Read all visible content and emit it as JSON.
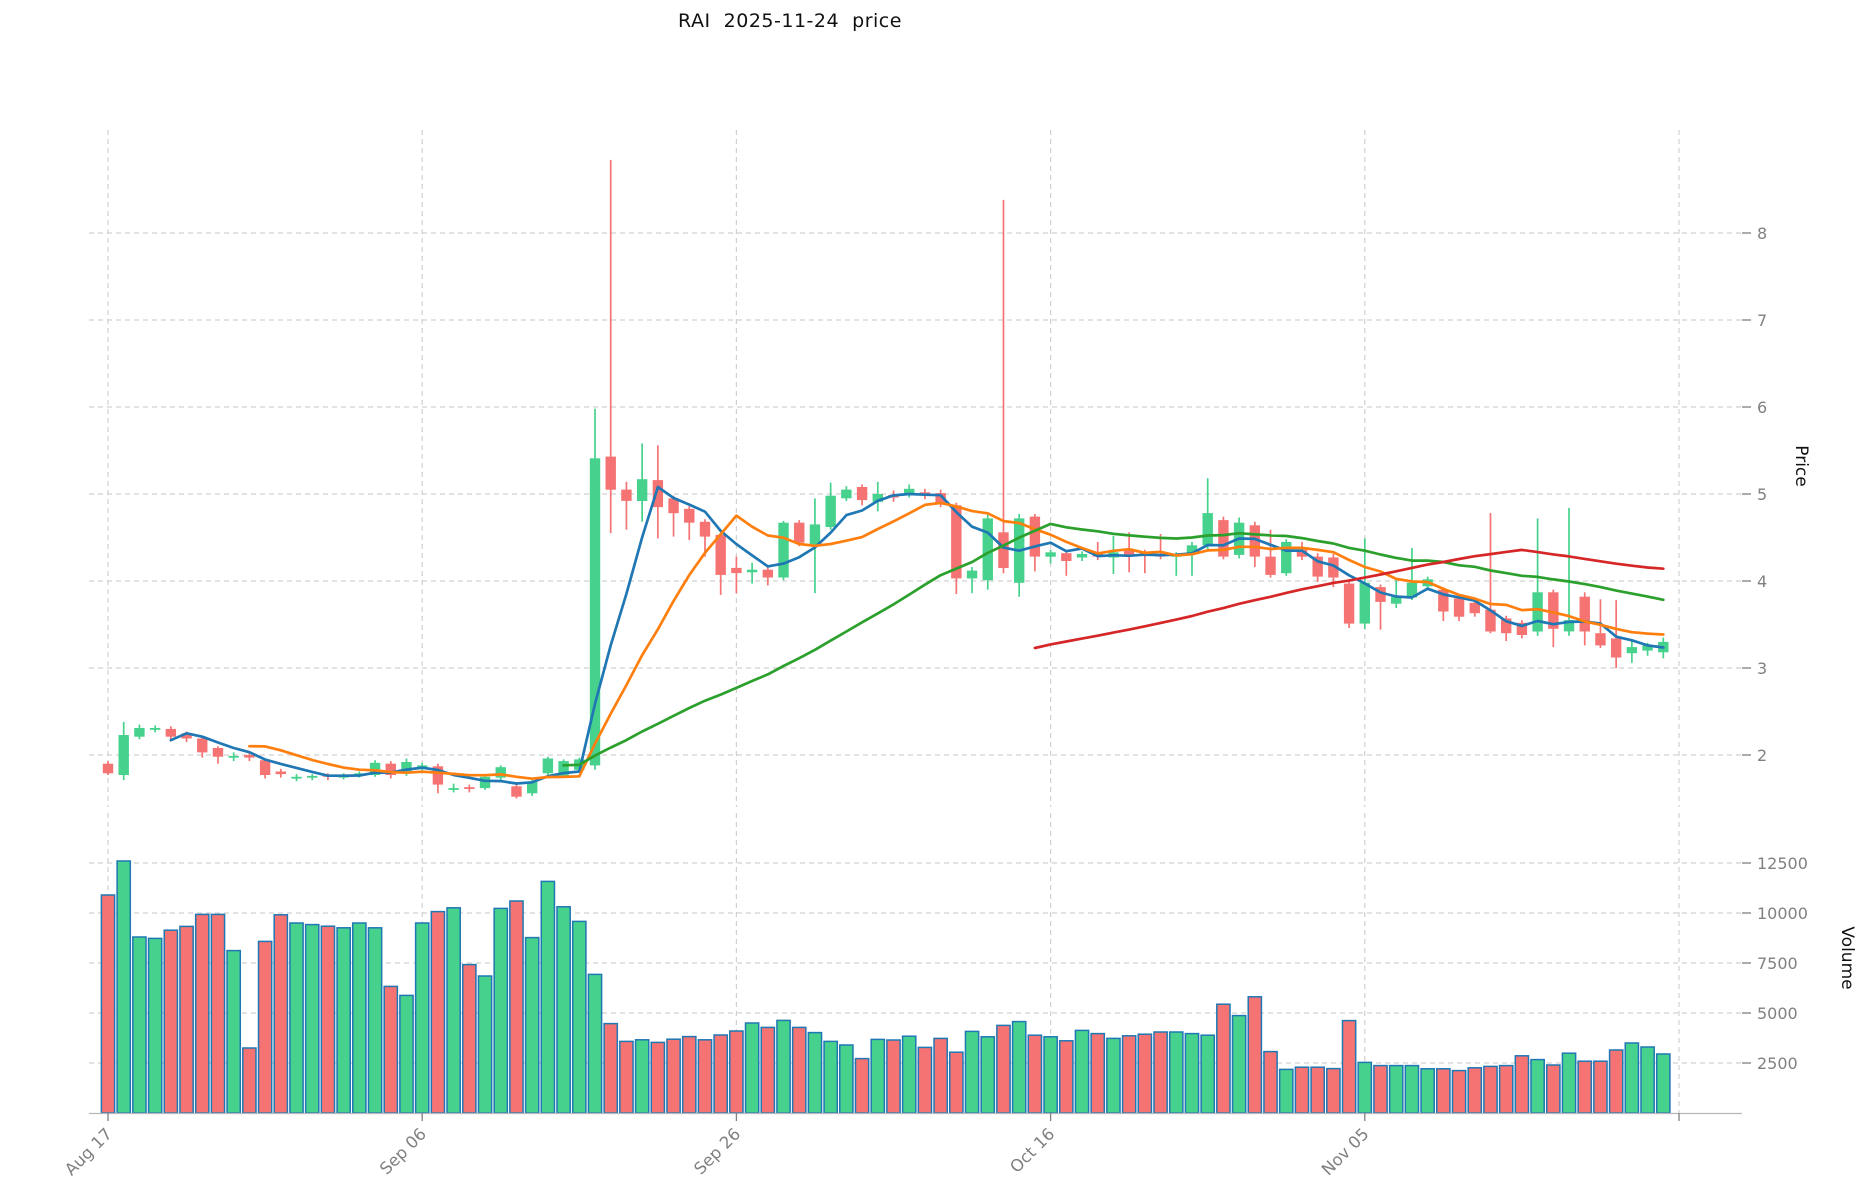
{
  "chart_data": {
    "type": "candlestick",
    "title": "RAI  2025-11-24  price",
    "ylabel": "Price",
    "ylabel_volume": "Volume",
    "grid": true,
    "legend_position": "none",
    "price_ticks": [
      2,
      3,
      4,
      5,
      6,
      7,
      8
    ],
    "volume_ticks": [
      2500,
      5000,
      7500,
      10000,
      12500
    ],
    "x_ticks": [
      {
        "index": 0,
        "label": "Aug 17"
      },
      {
        "index": 20,
        "label": "Sep 06"
      },
      {
        "index": 40,
        "label": "Sep 26"
      },
      {
        "index": 60,
        "label": "Oct 16"
      },
      {
        "index": 80,
        "label": "Nov 05"
      },
      {
        "index": 100,
        "label": ""
      }
    ],
    "price_range": [
      1.35,
      9.2
    ],
    "volume_range": [
      0,
      15150
    ],
    "colors": {
      "up": "#46d28c",
      "down": "#f57373",
      "volume_edge": "#1f77b4",
      "grid": "#d0d0d0",
      "tick_text": "#808080",
      "ma5": "#1f77b4",
      "ma10": "#ff7f0e",
      "ma30": "#2ca02c",
      "ma60": "#d62728"
    },
    "moving_averages": [
      {
        "period": 5,
        "color": "#1f77b4"
      },
      {
        "period": 10,
        "color": "#ff7f0e"
      },
      {
        "period": 30,
        "color": "#2ca02c"
      },
      {
        "period": 60,
        "color": "#d62728"
      }
    ],
    "columns": [
      "date",
      "open",
      "high",
      "low",
      "close",
      "volume"
    ],
    "candles": [
      [
        "2025-08-17",
        1.9,
        1.93,
        1.77,
        1.79,
        10900
      ],
      [
        "2025-08-18",
        1.77,
        2.38,
        1.71,
        2.23,
        12600
      ],
      [
        "2025-08-19",
        2.21,
        2.35,
        2.18,
        2.31,
        8800
      ],
      [
        "2025-08-20",
        2.3,
        2.34,
        2.26,
        2.31,
        8730
      ],
      [
        "2025-08-21",
        2.3,
        2.33,
        2.16,
        2.21,
        9140
      ],
      [
        "2025-08-22",
        2.25,
        2.27,
        2.15,
        2.19,
        9330
      ],
      [
        "2025-08-23",
        2.19,
        2.21,
        1.97,
        2.03,
        9930
      ],
      [
        "2025-08-24",
        2.08,
        2.1,
        1.9,
        1.98,
        9930
      ],
      [
        "2025-08-25",
        1.97,
        2.03,
        1.93,
        1.99,
        8120
      ],
      [
        "2025-08-26",
        2.0,
        2.03,
        1.93,
        1.97,
        3250
      ],
      [
        "2025-08-27",
        1.94,
        1.96,
        1.73,
        1.77,
        8580
      ],
      [
        "2025-08-28",
        1.81,
        1.84,
        1.74,
        1.78,
        9910
      ],
      [
        "2025-08-29",
        1.73,
        1.78,
        1.7,
        1.75,
        9500
      ],
      [
        "2025-08-30",
        1.74,
        1.78,
        1.71,
        1.76,
        9420
      ],
      [
        "2025-08-31",
        1.77,
        1.79,
        1.71,
        1.75,
        9340
      ],
      [
        "2025-09-01",
        1.74,
        1.79,
        1.72,
        1.77,
        9260
      ],
      [
        "2025-09-02",
        1.77,
        1.81,
        1.74,
        1.79,
        9500
      ],
      [
        "2025-09-03",
        1.77,
        1.94,
        1.75,
        1.91,
        9260
      ],
      [
        "2025-09-04",
        1.9,
        1.93,
        1.73,
        1.77,
        6330
      ],
      [
        "2025-09-05",
        1.79,
        1.96,
        1.76,
        1.92,
        5880
      ],
      [
        "2025-09-06",
        1.86,
        1.91,
        1.81,
        1.88,
        9500
      ],
      [
        "2025-09-07",
        1.87,
        1.9,
        1.56,
        1.66,
        10070
      ],
      [
        "2025-09-08",
        1.6,
        1.67,
        1.57,
        1.62,
        10260
      ],
      [
        "2025-09-09",
        1.63,
        1.66,
        1.57,
        1.61,
        7420
      ],
      [
        "2025-09-10",
        1.62,
        1.77,
        1.6,
        1.75,
        6850
      ],
      [
        "2025-09-11",
        1.74,
        1.88,
        1.71,
        1.86,
        10230
      ],
      [
        "2025-09-12",
        1.64,
        1.67,
        1.5,
        1.52,
        10600
      ],
      [
        "2025-09-13",
        1.56,
        1.72,
        1.53,
        1.69,
        8770
      ],
      [
        "2025-09-14",
        1.79,
        1.98,
        1.76,
        1.96,
        11580
      ],
      [
        "2025-09-15",
        1.76,
        1.95,
        1.74,
        1.93,
        10310
      ],
      [
        "2025-09-16",
        1.83,
        1.97,
        1.8,
        1.95,
        9580
      ],
      [
        "2025-09-17",
        1.88,
        5.98,
        1.83,
        5.41,
        6930
      ],
      [
        "2025-09-18",
        5.43,
        8.84,
        4.55,
        5.05,
        4470
      ],
      [
        "2025-09-19",
        5.05,
        5.14,
        4.59,
        4.92,
        3580
      ],
      [
        "2025-09-20",
        4.92,
        5.58,
        4.68,
        5.17,
        3660
      ],
      [
        "2025-09-21",
        5.16,
        5.56,
        4.49,
        4.85,
        3530
      ],
      [
        "2025-09-22",
        4.95,
        4.98,
        4.51,
        4.78,
        3690
      ],
      [
        "2025-09-23",
        4.83,
        4.86,
        4.47,
        4.67,
        3820
      ],
      [
        "2025-09-24",
        4.68,
        4.71,
        4.28,
        4.51,
        3660
      ],
      [
        "2025-09-25",
        4.53,
        4.56,
        3.84,
        4.07,
        3900
      ],
      [
        "2025-09-26",
        4.15,
        4.28,
        3.86,
        4.09,
        4100
      ],
      [
        "2025-09-27",
        4.1,
        4.21,
        3.97,
        4.13,
        4500
      ],
      [
        "2025-09-28",
        4.13,
        4.16,
        3.95,
        4.04,
        4280
      ],
      [
        "2025-09-29",
        4.04,
        4.69,
        4.01,
        4.67,
        4630
      ],
      [
        "2025-09-30",
        4.67,
        4.7,
        4.4,
        4.44,
        4280
      ],
      [
        "2025-10-01",
        4.42,
        4.95,
        3.86,
        4.65,
        4020
      ],
      [
        "2025-10-02",
        4.62,
        5.13,
        4.59,
        4.98,
        3580
      ],
      [
        "2025-10-03",
        4.95,
        5.09,
        4.92,
        5.05,
        3400
      ],
      [
        "2025-10-04",
        5.08,
        5.11,
        4.87,
        4.93,
        2720
      ],
      [
        "2025-10-05",
        4.91,
        5.14,
        4.8,
        5.0,
        3680
      ],
      [
        "2025-10-06",
        4.99,
        5.04,
        4.91,
        4.96,
        3650
      ],
      [
        "2025-10-07",
        4.99,
        5.11,
        4.96,
        5.06,
        3840
      ],
      [
        "2025-10-08",
        5.02,
        5.06,
        4.94,
        5.01,
        3280
      ],
      [
        "2025-10-09",
        5.01,
        5.05,
        4.85,
        4.9,
        3730
      ],
      [
        "2025-10-10",
        4.87,
        4.9,
        3.85,
        4.03,
        3040
      ],
      [
        "2025-10-11",
        4.03,
        4.16,
        3.86,
        4.12,
        4080
      ],
      [
        "2025-10-12",
        4.01,
        4.77,
        3.9,
        4.72,
        3810
      ],
      [
        "2025-10-13",
        4.56,
        8.38,
        4.09,
        4.15,
        4380
      ],
      [
        "2025-10-14",
        3.98,
        4.77,
        3.82,
        4.72,
        4570
      ],
      [
        "2025-10-15",
        4.74,
        4.77,
        4.11,
        4.28,
        3890
      ],
      [
        "2025-10-16",
        4.28,
        4.36,
        4.2,
        4.33,
        3810
      ],
      [
        "2025-10-17",
        4.32,
        4.35,
        4.06,
        4.23,
        3610
      ],
      [
        "2025-10-18",
        4.27,
        4.34,
        4.23,
        4.31,
        4130
      ],
      [
        "2025-10-19",
        4.31,
        4.45,
        4.24,
        4.28,
        3970
      ],
      [
        "2025-10-20",
        4.27,
        4.52,
        4.08,
        4.33,
        3730
      ],
      [
        "2025-10-21",
        4.36,
        4.56,
        4.1,
        4.3,
        3860
      ],
      [
        "2025-10-22",
        4.32,
        4.36,
        4.09,
        4.3,
        3940
      ],
      [
        "2025-10-23",
        4.31,
        4.54,
        4.25,
        4.28,
        4050
      ],
      [
        "2025-10-24",
        4.28,
        4.33,
        4.06,
        4.3,
        4050
      ],
      [
        "2025-10-25",
        4.31,
        4.45,
        4.06,
        4.41,
        3970
      ],
      [
        "2025-10-26",
        4.41,
        5.18,
        4.35,
        4.78,
        3890
      ],
      [
        "2025-10-27",
        4.7,
        4.74,
        4.25,
        4.28,
        5440
      ],
      [
        "2025-10-28",
        4.3,
        4.73,
        4.26,
        4.67,
        4870
      ],
      [
        "2025-10-29",
        4.64,
        4.68,
        4.16,
        4.28,
        5810
      ],
      [
        "2025-10-30",
        4.28,
        4.59,
        4.04,
        4.07,
        3070
      ],
      [
        "2025-10-31",
        4.09,
        4.48,
        4.06,
        4.45,
        2180
      ],
      [
        "2025-11-01",
        4.36,
        4.45,
        4.24,
        4.28,
        2290
      ],
      [
        "2025-11-02",
        4.28,
        4.32,
        3.99,
        4.05,
        2290
      ],
      [
        "2025-11-03",
        4.27,
        4.31,
        3.93,
        4.04,
        2220
      ],
      [
        "2025-11-04",
        3.97,
        4.02,
        3.46,
        3.51,
        4620
      ],
      [
        "2025-11-05",
        3.51,
        4.49,
        3.45,
        3.98,
        2530
      ],
      [
        "2025-11-06",
        3.93,
        3.96,
        3.44,
        3.76,
        2370
      ],
      [
        "2025-11-07",
        3.74,
        4.02,
        3.69,
        3.82,
        2370
      ],
      [
        "2025-11-08",
        3.81,
        4.38,
        3.78,
        3.98,
        2370
      ],
      [
        "2025-11-09",
        3.94,
        4.05,
        3.89,
        4.02,
        2210
      ],
      [
        "2025-11-10",
        3.9,
        3.93,
        3.54,
        3.65,
        2210
      ],
      [
        "2025-11-11",
        3.8,
        3.83,
        3.54,
        3.59,
        2120
      ],
      [
        "2025-11-12",
        3.75,
        3.79,
        3.59,
        3.63,
        2260
      ],
      [
        "2025-11-13",
        3.67,
        4.78,
        3.4,
        3.42,
        2330
      ],
      [
        "2025-11-14",
        3.57,
        3.6,
        3.31,
        3.4,
        2370
      ],
      [
        "2025-11-15",
        3.52,
        3.55,
        3.34,
        3.38,
        2860
      ],
      [
        "2025-11-16",
        3.42,
        4.72,
        3.37,
        3.87,
        2670
      ],
      [
        "2025-11-17",
        3.87,
        3.9,
        3.24,
        3.45,
        2400
      ],
      [
        "2025-11-18",
        3.42,
        4.84,
        3.37,
        3.55,
        2990
      ],
      [
        "2025-11-19",
        3.82,
        3.87,
        3.26,
        3.42,
        2590
      ],
      [
        "2025-11-20",
        3.4,
        3.79,
        3.23,
        3.26,
        2590
      ],
      [
        "2025-11-21",
        3.34,
        3.78,
        3.0,
        3.12,
        3150
      ],
      [
        "2025-11-22",
        3.17,
        3.33,
        3.06,
        3.24,
        3500
      ],
      [
        "2025-11-23",
        3.2,
        3.29,
        3.14,
        3.26,
        3300
      ],
      [
        "2025-11-24",
        3.18,
        3.35,
        3.11,
        3.3,
        2950
      ]
    ]
  }
}
